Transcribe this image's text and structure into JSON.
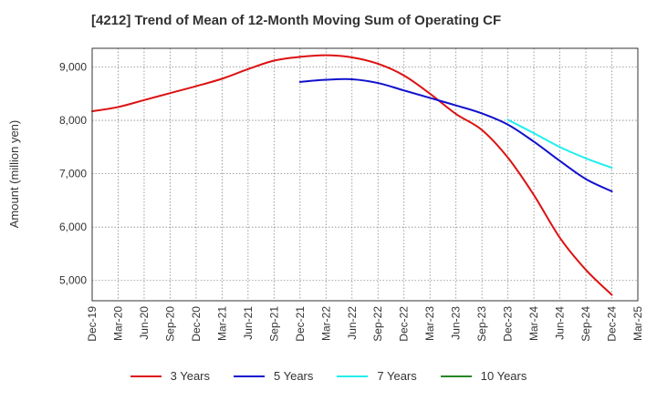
{
  "chart_data": {
    "type": "line",
    "title": "[4212]  Trend of Mean of 12-Month Moving Sum of Operating CF",
    "xlabel": "",
    "ylabel": "Amount (million yen)",
    "ylim": [
      4620,
      9350
    ],
    "yticks": [
      5000,
      6000,
      7000,
      8000,
      9000
    ],
    "ytick_labels": [
      "5,000",
      "6,000",
      "7,000",
      "8,000",
      "9,000"
    ],
    "grid": true,
    "legend_position": "bottom",
    "categories": [
      "Dec-19",
      "Mar-20",
      "Jun-20",
      "Sep-20",
      "Dec-20",
      "Mar-21",
      "Jun-21",
      "Sep-21",
      "Dec-21",
      "Mar-22",
      "Jun-22",
      "Sep-22",
      "Dec-22",
      "Mar-23",
      "Jun-23",
      "Sep-23",
      "Dec-23",
      "Mar-24",
      "Jun-24",
      "Sep-24",
      "Dec-24",
      "Mar-25"
    ],
    "series": [
      {
        "name": "3 Years",
        "color": "#dd1111",
        "points": [
          [
            0,
            8170
          ],
          [
            1,
            8250
          ],
          [
            2,
            8380
          ],
          [
            3,
            8510
          ],
          [
            4,
            8640
          ],
          [
            5,
            8780
          ],
          [
            6,
            8960
          ],
          [
            7,
            9120
          ],
          [
            8,
            9190
          ],
          [
            9,
            9220
          ],
          [
            10,
            9180
          ],
          [
            11,
            9060
          ],
          [
            12,
            8840
          ],
          [
            13,
            8500
          ],
          [
            14,
            8120
          ],
          [
            15,
            7820
          ],
          [
            16,
            7300
          ],
          [
            17,
            6600
          ],
          [
            18,
            5800
          ],
          [
            19,
            5200
          ],
          [
            20,
            4730
          ]
        ]
      },
      {
        "name": "5 Years",
        "color": "#1111cc",
        "points": [
          [
            8,
            8720
          ],
          [
            9,
            8760
          ],
          [
            10,
            8770
          ],
          [
            11,
            8700
          ],
          [
            12,
            8560
          ],
          [
            13,
            8420
          ],
          [
            14,
            8280
          ],
          [
            15,
            8130
          ],
          [
            16,
            7920
          ],
          [
            17,
            7600
          ],
          [
            18,
            7240
          ],
          [
            19,
            6900
          ],
          [
            20,
            6670
          ]
        ]
      },
      {
        "name": "7 Years",
        "color": "#22eeee",
        "points": [
          [
            16,
            8010
          ],
          [
            17,
            7760
          ],
          [
            18,
            7500
          ],
          [
            19,
            7290
          ],
          [
            20,
            7110
          ]
        ]
      },
      {
        "name": "10 Years",
        "color": "#228822",
        "points": []
      }
    ]
  }
}
